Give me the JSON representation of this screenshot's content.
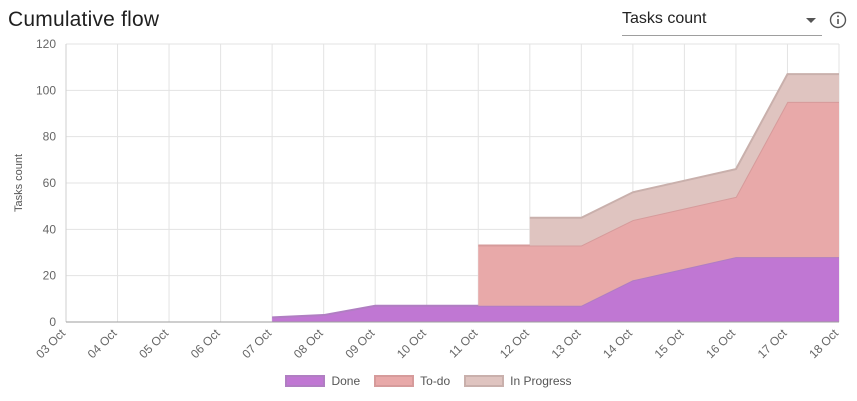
{
  "header": {
    "title": "Cumulative flow",
    "metric_select": {
      "value": "Tasks count"
    },
    "info_icon": "info-icon"
  },
  "chart_data": {
    "type": "area",
    "stacked": true,
    "title": "",
    "ylabel": "Tasks count",
    "xlabel": "",
    "ylim": [
      0,
      120
    ],
    "yticks": [
      0,
      20,
      40,
      60,
      80,
      100,
      120
    ],
    "grid": true,
    "legend_position": "bottom",
    "categories": [
      "03 Oct",
      "04 Oct",
      "05 Oct",
      "06 Oct",
      "07 Oct",
      "08 Oct",
      "09 Oct",
      "10 Oct",
      "11 Oct",
      "12 Oct",
      "13 Oct",
      "14 Oct",
      "15 Oct",
      "16 Oct",
      "17 Oct",
      "18 Oct"
    ],
    "series": [
      {
        "name": "Done",
        "color": "#c077d3",
        "stroke": "#b07ec2",
        "values": [
          null,
          null,
          null,
          null,
          2,
          3,
          7,
          7,
          7,
          7,
          7,
          18,
          23,
          28,
          28,
          28
        ]
      },
      {
        "name": "To-do",
        "color": "#e8a9a9",
        "stroke": "#d69b9b",
        "values": [
          null,
          null,
          null,
          null,
          0,
          0,
          0,
          0,
          26,
          26,
          26,
          26,
          26,
          26,
          67,
          67
        ]
      },
      {
        "name": "In Progress",
        "color": "#dfc4c0",
        "stroke": "#c9b0ac",
        "values": [
          null,
          null,
          null,
          null,
          0,
          0,
          0,
          0,
          0,
          12,
          12,
          12,
          12,
          12,
          12,
          12
        ]
      }
    ]
  }
}
